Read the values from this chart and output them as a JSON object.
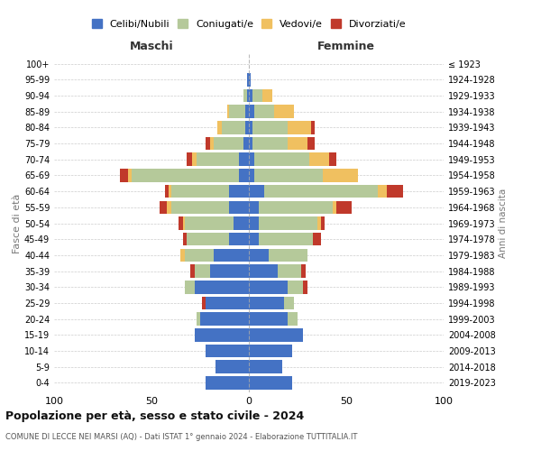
{
  "age_groups": [
    "0-4",
    "5-9",
    "10-14",
    "15-19",
    "20-24",
    "25-29",
    "30-34",
    "35-39",
    "40-44",
    "45-49",
    "50-54",
    "55-59",
    "60-64",
    "65-69",
    "70-74",
    "75-79",
    "80-84",
    "85-89",
    "90-94",
    "95-99",
    "100+"
  ],
  "birth_years": [
    "2019-2023",
    "2014-2018",
    "2009-2013",
    "2004-2008",
    "1999-2003",
    "1994-1998",
    "1989-1993",
    "1984-1988",
    "1979-1983",
    "1974-1978",
    "1969-1973",
    "1964-1968",
    "1959-1963",
    "1954-1958",
    "1949-1953",
    "1944-1948",
    "1939-1943",
    "1934-1938",
    "1929-1933",
    "1924-1928",
    "≤ 1923"
  ],
  "colors": {
    "celibi": "#4472c4",
    "coniugati": "#b5c99a",
    "vedovi": "#f0c060",
    "divorziati": "#c0392b"
  },
  "maschi": {
    "celibi": [
      22,
      17,
      22,
      28,
      25,
      22,
      28,
      20,
      18,
      10,
      8,
      10,
      10,
      5,
      5,
      3,
      2,
      2,
      1,
      1,
      0
    ],
    "coniugati": [
      0,
      0,
      0,
      0,
      2,
      0,
      5,
      8,
      15,
      22,
      25,
      30,
      30,
      55,
      22,
      15,
      12,
      8,
      2,
      0,
      0
    ],
    "vedovi": [
      0,
      0,
      0,
      0,
      0,
      0,
      0,
      0,
      2,
      0,
      1,
      2,
      1,
      2,
      2,
      2,
      2,
      1,
      0,
      0,
      0
    ],
    "divorziati": [
      0,
      0,
      0,
      0,
      0,
      2,
      0,
      2,
      0,
      2,
      2,
      4,
      2,
      4,
      3,
      2,
      0,
      0,
      0,
      0,
      0
    ]
  },
  "femmine": {
    "celibi": [
      22,
      17,
      22,
      28,
      20,
      18,
      20,
      15,
      10,
      5,
      5,
      5,
      8,
      3,
      3,
      2,
      2,
      3,
      2,
      1,
      0
    ],
    "coniugati": [
      0,
      0,
      0,
      0,
      5,
      5,
      8,
      12,
      20,
      28,
      30,
      38,
      58,
      35,
      28,
      18,
      18,
      10,
      5,
      0,
      0
    ],
    "vedovi": [
      0,
      0,
      0,
      0,
      0,
      0,
      0,
      0,
      0,
      0,
      2,
      2,
      5,
      18,
      10,
      10,
      12,
      10,
      5,
      0,
      0
    ],
    "divorziati": [
      0,
      0,
      0,
      0,
      0,
      0,
      2,
      2,
      0,
      4,
      2,
      8,
      8,
      0,
      4,
      4,
      2,
      0,
      0,
      0,
      0
    ]
  },
  "title_main": "Popolazione per età, sesso e stato civile - 2024",
  "title_sub": "COMUNE DI LECCE NEI MARSI (AQ) - Dati ISTAT 1° gennaio 2024 - Elaborazione TUTTITALIA.IT",
  "xlabel_left": "Maschi",
  "xlabel_right": "Femmine",
  "ylabel_left": "Fasce di età",
  "ylabel_right": "Anni di nascita",
  "xlim": 100,
  "legend_labels": [
    "Celibi/Nubili",
    "Coniugati/e",
    "Vedovi/e",
    "Divorziati/e"
  ],
  "background_color": "#ffffff"
}
